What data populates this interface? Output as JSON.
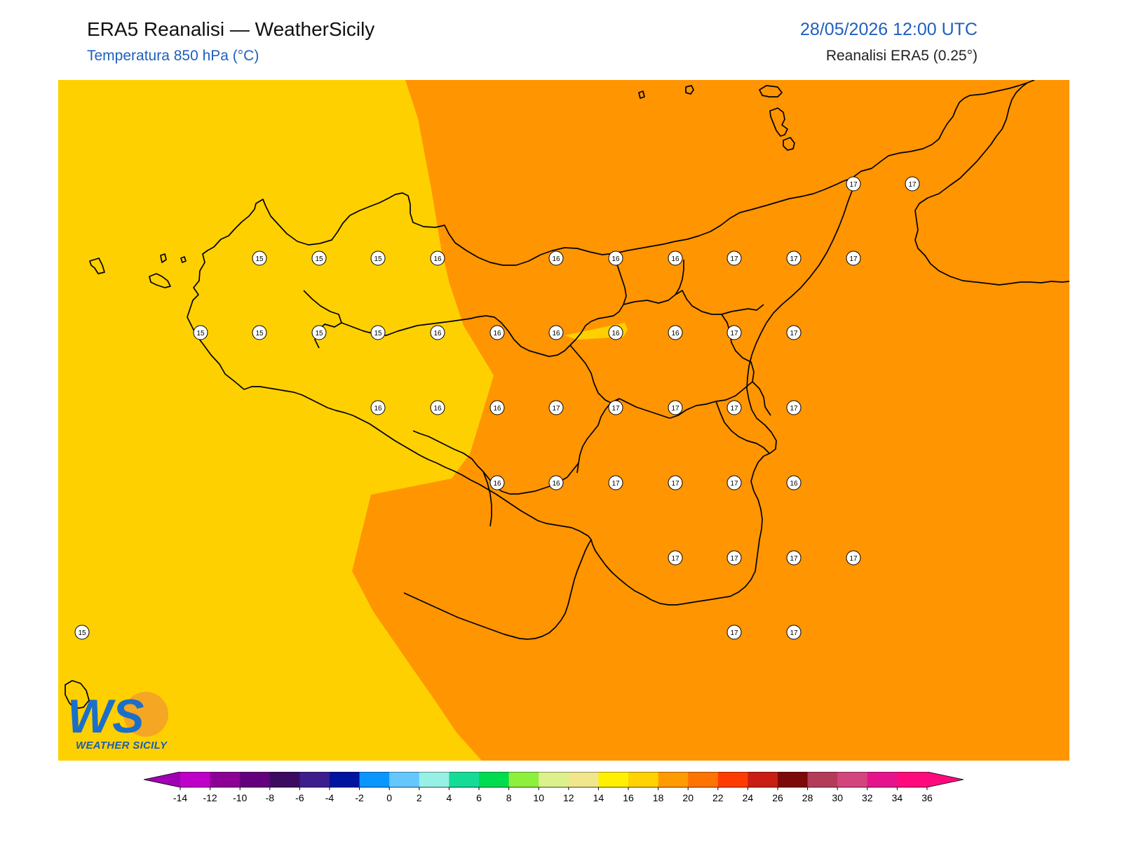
{
  "header": {
    "title": "ERA5 Reanalisi — WeatherSicily",
    "subtitle": "Temperatura 850 hPa (°C)",
    "datetime": "28/05/2026 12:00 UTC",
    "source": "Reanalisi ERA5 (0.25°)"
  },
  "logo": {
    "text": "WEATHER SICILY",
    "icon": "ws-logo-icon"
  },
  "colors": {
    "band_14_16": "#FFD000",
    "band_16_18": "#FF9500",
    "coastline": "#000000"
  },
  "colorbar": {
    "ticks": [
      "-14",
      "-12",
      "-10",
      "-8",
      "-6",
      "-4",
      "-2",
      "0",
      "2",
      "4",
      "6",
      "8",
      "10",
      "12",
      "14",
      "16",
      "18",
      "20",
      "22",
      "24",
      "26",
      "28",
      "30",
      "32",
      "34",
      "36"
    ],
    "colors": [
      "#BE00C8",
      "#8C0096",
      "#64007D",
      "#3C0A5F",
      "#3C1E8C",
      "#0014A0",
      "#0A96FF",
      "#64C8FF",
      "#96F0E6",
      "#14DC96",
      "#00DC50",
      "#8CF03C",
      "#DCF08C",
      "#F0E68C",
      "#FFF000",
      "#FFD200",
      "#FF9B00",
      "#FF7300",
      "#FF3C00",
      "#C81E14",
      "#7D0A0A",
      "#B43C5A",
      "#D2467D",
      "#E6148C",
      "#FF0A7D"
    ]
  },
  "labels": [
    {
      "value": "15"
    },
    {
      "value": "15"
    },
    {
      "value": "15"
    },
    {
      "value": "16"
    },
    {
      "value": "16"
    },
    {
      "value": "16"
    },
    {
      "value": "16"
    },
    {
      "value": "17"
    },
    {
      "value": "17"
    },
    {
      "value": "17"
    },
    {
      "value": "15"
    },
    {
      "value": "15"
    },
    {
      "value": "15"
    },
    {
      "value": "15"
    },
    {
      "value": "16"
    },
    {
      "value": "16"
    },
    {
      "value": "16"
    },
    {
      "value": "16"
    },
    {
      "value": "16"
    },
    {
      "value": "17"
    },
    {
      "value": "17"
    },
    {
      "value": "16"
    },
    {
      "value": "16"
    },
    {
      "value": "16"
    },
    {
      "value": "17"
    },
    {
      "value": "17"
    },
    {
      "value": "17"
    },
    {
      "value": "17"
    },
    {
      "value": "17"
    },
    {
      "value": "16"
    },
    {
      "value": "16"
    },
    {
      "value": "17"
    },
    {
      "value": "17"
    },
    {
      "value": "17"
    },
    {
      "value": "16"
    },
    {
      "value": "17"
    },
    {
      "value": "17"
    },
    {
      "value": "17"
    },
    {
      "value": "17"
    },
    {
      "value": "15"
    },
    {
      "value": "17"
    },
    {
      "value": "17"
    },
    {
      "value": "17"
    },
    {
      "value": "17"
    }
  ]
}
